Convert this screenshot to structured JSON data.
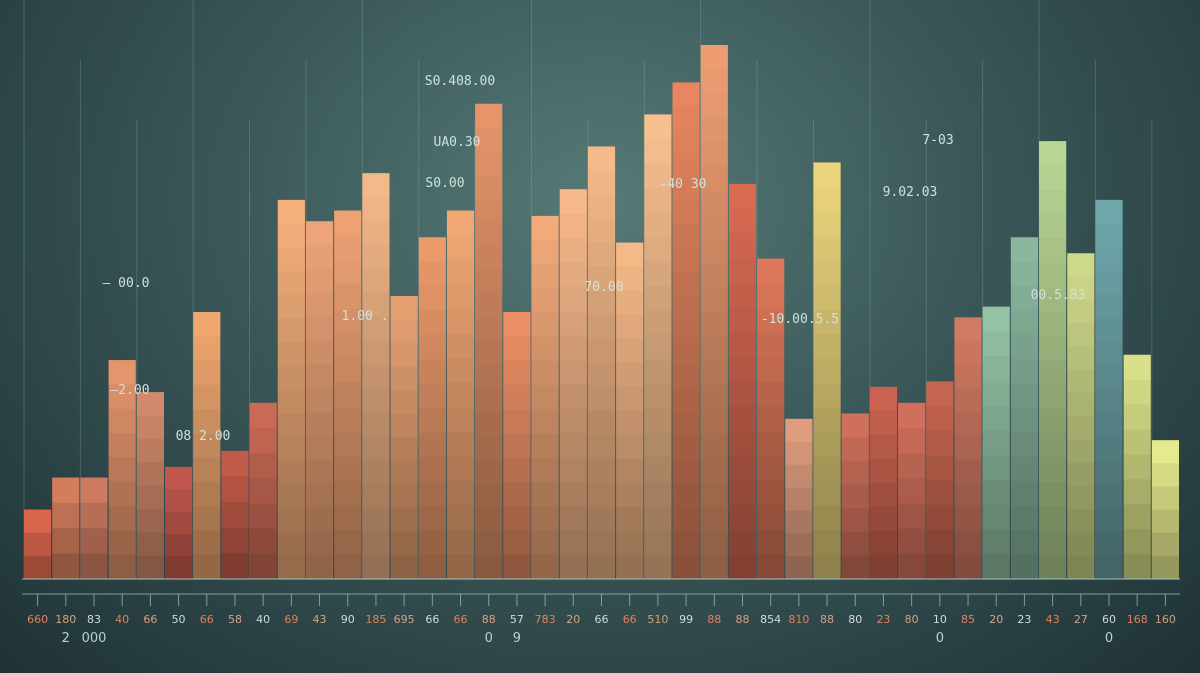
{
  "chart_data": {
    "type": "bar",
    "title": "",
    "xlabel": "",
    "ylabel": "",
    "ylim": [
      0,
      100
    ],
    "grid": "vertical lines",
    "categories": [
      "660",
      "180",
      "83",
      "40",
      "66",
      "50",
      "66",
      "58",
      "40",
      "69",
      "43",
      "90",
      "185",
      "695",
      "66",
      "66",
      "88",
      "57",
      "783",
      "20",
      "66",
      "66",
      "510",
      "99",
      "88",
      "88",
      "854",
      "810",
      "88",
      "80",
      "23",
      "80",
      "10",
      "85",
      "20",
      "23",
      "43",
      "27",
      "60",
      "168",
      "160"
    ],
    "values": [
      13,
      19,
      19,
      41,
      35,
      21,
      50,
      24,
      33,
      71,
      67,
      69,
      76,
      53,
      64,
      69,
      89,
      50,
      68,
      73,
      81,
      63,
      87,
      93,
      100,
      74,
      60,
      30,
      78,
      31,
      36,
      33,
      37,
      49,
      51,
      64,
      82,
      61,
      71,
      42,
      26
    ],
    "bar_colors": [
      "#d9664c",
      "#d47d5e",
      "#cc7a60",
      "#e4956c",
      "#d18a6b",
      "#c1574c",
      "#f0a870",
      "#c15a48",
      "#ca6a55",
      "#f5b07c",
      "#eea478",
      "#eea274",
      "#f5b889",
      "#e6a172",
      "#eb9a6b",
      "#f2a875",
      "#e6956a",
      "#ec8f66",
      "#f3aa7a",
      "#f7b88a",
      "#f6ba8a",
      "#f5b887",
      "#f7c08f",
      "#e7865f",
      "#ee9d72",
      "#d96a52",
      "#dc7759",
      "#df9d7e",
      "#ebd57c",
      "#ce705c",
      "#c9634f",
      "#d0705c",
      "#c66550",
      "#d27a63",
      "#94c2a5",
      "#8ab79e",
      "#b9d694",
      "#cfd98a",
      "#6fa7ab",
      "#d9e188",
      "#e5ea8e"
    ],
    "annotations": [
      "S0.408.00",
      "UA0.30",
      "S0.00",
      "-40 30",
      "7-03",
      "9.02.03",
      "— 00.0",
      "—2.00",
      "08 2.00",
      "1.00 .",
      "70.00",
      "-10.00.5.5",
      "00.5.83"
    ],
    "x_tick_labels": [
      "660",
      "180",
      "83",
      "40",
      "66",
      "50",
      "66",
      "58",
      "40",
      "69",
      "43",
      "90",
      "185",
      "695",
      "66",
      "66",
      "88",
      "57",
      "783",
      "20",
      "66",
      "66",
      "510",
      "99",
      "88",
      "88",
      "854",
      "810",
      "88",
      "80",
      "23",
      "80",
      "10",
      "85",
      "20",
      "23",
      "43",
      "27",
      "60",
      "168",
      "160"
    ],
    "x_tick_labels_2": [
      "2",
      "000",
      "0",
      "9",
      "0",
      "0"
    ]
  }
}
